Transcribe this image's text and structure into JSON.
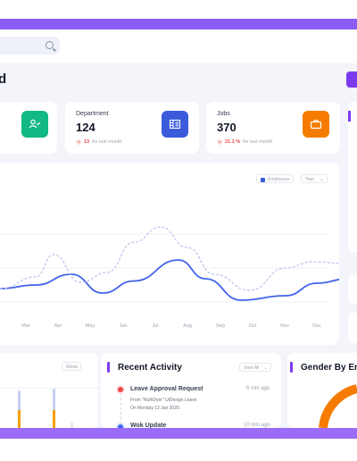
{
  "header": {
    "search": {
      "placeholder": ""
    }
  },
  "page": {
    "title": "d"
  },
  "stats": [
    {
      "title": "Department",
      "value": "124",
      "change": "13",
      "change_label": "for last month",
      "icon": "building-icon",
      "color": "#3b5bdb"
    },
    {
      "title": "Jobs",
      "value": "370",
      "change": "21.1 %",
      "change_label": "for last month",
      "icon": "briefcase-icon",
      "color": "#f57c00"
    }
  ],
  "first_stat_icon": {
    "icon": "user-check-icon",
    "color": "#12b886"
  },
  "chart_data": {
    "type": "line",
    "x": [
      "Mar",
      "Apr",
      "May",
      "Jun",
      "Jul",
      "Aug",
      "Sep",
      "Oct",
      "Nov",
      "Dec"
    ],
    "series": [
      {
        "name": "Employees",
        "style": "solid",
        "color": "#4263eb",
        "points": [
          [
            0,
            58
          ],
          [
            40,
            66
          ],
          [
            80,
            90
          ],
          [
            115,
            48
          ],
          [
            150,
            75
          ],
          [
            200,
            122
          ],
          [
            230,
            80
          ],
          [
            270,
            32
          ],
          [
            320,
            42
          ],
          [
            355,
            70
          ],
          [
            390,
            80
          ]
        ]
      },
      {
        "name": "",
        "style": "dashed",
        "color": "#b8c1ec",
        "points": [
          [
            0,
            58
          ],
          [
            40,
            84
          ],
          [
            60,
            134
          ],
          [
            90,
            72
          ],
          [
            120,
            94
          ],
          [
            150,
            162
          ],
          [
            180,
            196
          ],
          [
            210,
            150
          ],
          [
            240,
            90
          ],
          [
            280,
            54
          ],
          [
            320,
            104
          ],
          [
            350,
            118
          ],
          [
            390,
            114
          ]
        ]
      }
    ],
    "legend": "Employees",
    "period": "Year",
    "grid": true
  },
  "bar_widget": {
    "select": "Week"
  },
  "activity": {
    "title": "Recent Activity",
    "select": "View All",
    "items": [
      {
        "title": "Leave Approval Request",
        "time": "6 min ago",
        "sub1": "From \"RuthDyer\" UiDesign Leave",
        "sub2": "On Monday 12 Jan 2020.",
        "color": "#ef4444"
      },
      {
        "title": "Wok Update",
        "time": "10 min ago",
        "color": "#4263eb"
      }
    ]
  },
  "gender": {
    "title": "Gender By En"
  }
}
